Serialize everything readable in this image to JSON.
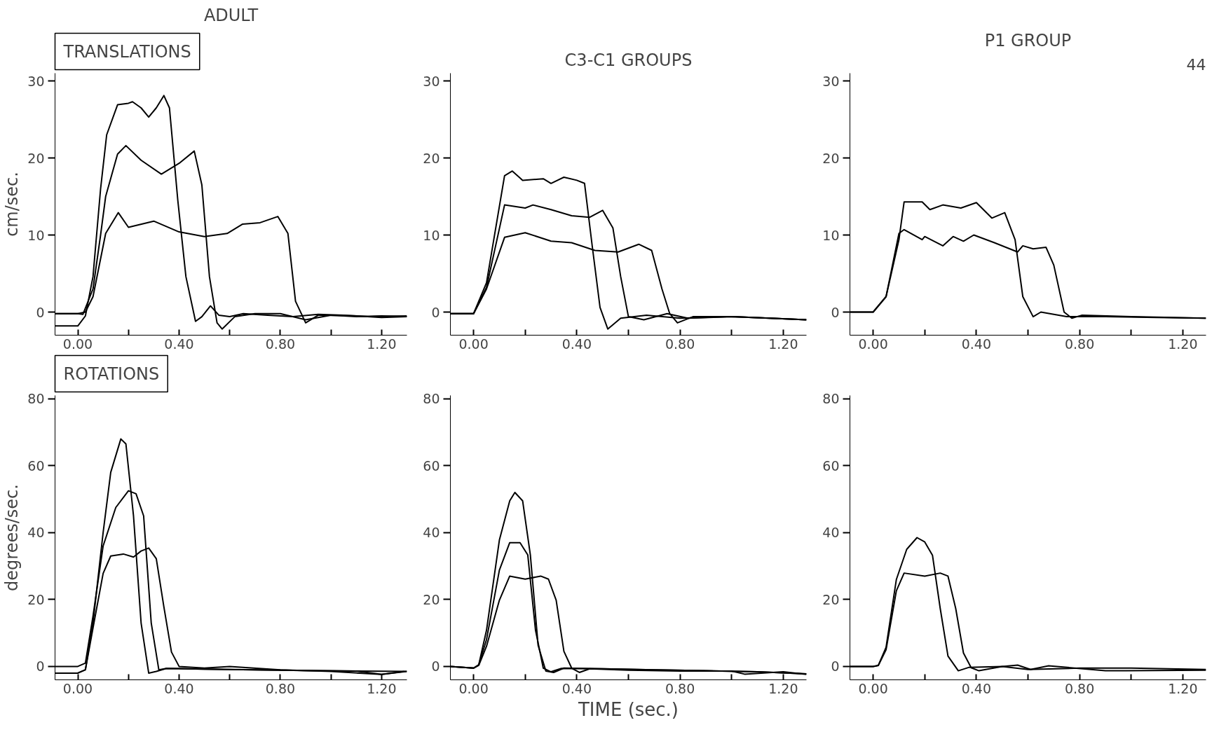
{
  "chart_data": [
    {
      "type": "line",
      "title": "ADULT",
      "ylabel": "cm/sec.",
      "annotations": [
        "TRANSLATIONS"
      ],
      "xlim": [
        -0.09,
        1.3
      ],
      "ylim": [
        -3,
        31
      ],
      "yticks": [
        0,
        10,
        20,
        30
      ],
      "xticks": [
        {
          "value": 0,
          "label": "0.00"
        },
        {
          "value": 0.2,
          "label": null
        },
        {
          "value": 0.4,
          "label": "0.40"
        },
        {
          "value": 0.6,
          "label": null
        },
        {
          "value": 0.8,
          "label": "0.80"
        },
        {
          "value": 1.0,
          "label": null
        },
        {
          "value": 1.2,
          "label": "1.20"
        }
      ],
      "series": [
        {
          "color": "#000000",
          "x": [
            -0.09,
            0.0,
            0.03,
            0.06,
            0.09,
            0.114,
            0.157,
            0.2,
            0.216,
            0.25,
            0.28,
            0.31,
            0.34,
            0.362,
            0.395,
            0.427,
            0.465,
            0.49,
            0.524,
            0.557,
            0.6,
            0.654,
            0.75,
            0.85,
            0.95,
            1.05,
            1.15,
            1.3
          ],
          "values": [
            -1.8,
            -1.8,
            -0.5,
            4.6,
            16,
            23,
            26.9,
            27.1,
            27.3,
            26.5,
            25.3,
            26.5,
            28.1,
            26.5,
            14.5,
            4.6,
            -1.2,
            -0.6,
            0.8,
            -0.4,
            -0.6,
            -0.2,
            -0.4,
            -0.6,
            -0.3,
            -0.4,
            -0.6,
            -0.5
          ]
        },
        {
          "color": "#000000",
          "x": [
            -0.09,
            0.0,
            0.02,
            0.06,
            0.09,
            0.11,
            0.157,
            0.19,
            0.25,
            0.33,
            0.4,
            0.46,
            0.49,
            0.52,
            0.55,
            0.57,
            0.62,
            0.7,
            0.8,
            0.9,
            1.0,
            1.1,
            1.2,
            1.3
          ],
          "values": [
            -0.2,
            -0.2,
            -0.3,
            3,
            10,
            15,
            20.5,
            21.6,
            19.7,
            17.9,
            19.3,
            20.9,
            16.5,
            4.6,
            -1.4,
            -2.2,
            -0.6,
            -0.2,
            -0.2,
            -1.0,
            -0.4,
            -0.5,
            -0.7,
            -0.6
          ]
        },
        {
          "color": "#000000",
          "x": [
            -0.09,
            0.0,
            0.03,
            0.06,
            0.11,
            0.16,
            0.2,
            0.3,
            0.4,
            0.5,
            0.59,
            0.65,
            0.72,
            0.79,
            0.83,
            0.86,
            0.9,
            0.95,
            1.0,
            1.1,
            1.2,
            1.3
          ],
          "values": [
            -0.2,
            -0.2,
            0,
            2,
            10.2,
            12.9,
            11,
            11.8,
            10.4,
            9.8,
            10.2,
            11.4,
            11.6,
            12.4,
            10.2,
            1.4,
            -1.4,
            -0.4,
            -0.4,
            -0.6,
            -0.5,
            -0.6
          ]
        }
      ]
    },
    {
      "type": "line",
      "title": "C3-C1 GROUPS",
      "xlim": [
        -0.09,
        1.29
      ],
      "ylim": [
        -3,
        31
      ],
      "yticks": [
        0,
        10,
        20,
        30
      ],
      "xticks": [
        {
          "value": 0,
          "label": "0.00"
        },
        {
          "value": 0.2,
          "label": null
        },
        {
          "value": 0.4,
          "label": "0.40"
        },
        {
          "value": 0.6,
          "label": null
        },
        {
          "value": 0.8,
          "label": "0.80"
        },
        {
          "value": 1.0,
          "label": null
        },
        {
          "value": 1.2,
          "label": "1.20"
        }
      ],
      "series": [
        {
          "color": "#000000",
          "x": [
            -0.09,
            0.0,
            0.05,
            0.12,
            0.15,
            0.19,
            0.27,
            0.3,
            0.35,
            0.4,
            0.43,
            0.46,
            0.49,
            0.52,
            0.57,
            0.67,
            0.8,
            1.0,
            1.15,
            1.29
          ],
          "values": [
            -0.2,
            -0.2,
            3.8,
            17.7,
            18.3,
            17.1,
            17.3,
            16.7,
            17.5,
            17.1,
            16.7,
            8.5,
            0.6,
            -2.2,
            -0.8,
            -0.4,
            -0.8,
            -0.6,
            -0.8,
            -1.0
          ]
        },
        {
          "color": "#000000",
          "x": [
            -0.09,
            0.0,
            0.05,
            0.12,
            0.2,
            0.23,
            0.3,
            0.38,
            0.45,
            0.5,
            0.54,
            0.57,
            0.6,
            0.66,
            0.75,
            0.83,
            1.0,
            1.29
          ],
          "values": [
            -0.2,
            -0.2,
            3.2,
            13.9,
            13.5,
            13.9,
            13.3,
            12.5,
            12.3,
            13.2,
            10.9,
            4.6,
            -0.6,
            -1.0,
            -0.2,
            -0.8,
            -0.6,
            -1.0
          ]
        },
        {
          "color": "#000000",
          "x": [
            -0.09,
            0.0,
            0.05,
            0.12,
            0.2,
            0.3,
            0.38,
            0.47,
            0.56,
            0.64,
            0.69,
            0.73,
            0.76,
            0.79,
            0.85,
            1.0,
            1.15,
            1.29
          ],
          "values": [
            -0.2,
            -0.2,
            3,
            9.7,
            10.3,
            9.2,
            9.0,
            8.0,
            7.8,
            8.8,
            8.0,
            3.0,
            -0.2,
            -1.4,
            -0.6,
            -0.6,
            -0.8,
            -1.0
          ]
        }
      ]
    },
    {
      "type": "line",
      "title": "P1 GROUP",
      "annotations": [
        "44"
      ],
      "xlim": [
        -0.09,
        1.29
      ],
      "ylim": [
        -3,
        31
      ],
      "yticks": [
        0,
        10,
        20,
        30
      ],
      "xticks": [
        {
          "value": 0,
          "label": "0.00"
        },
        {
          "value": 0.2,
          "label": null
        },
        {
          "value": 0.4,
          "label": "0.40"
        },
        {
          "value": 0.6,
          "label": null
        },
        {
          "value": 0.8,
          "label": "0.80"
        },
        {
          "value": 1.0,
          "label": null
        },
        {
          "value": 1.2,
          "label": "1.20"
        }
      ],
      "series": [
        {
          "color": "#000000",
          "x": [
            -0.09,
            0.0,
            0.05,
            0.1,
            0.12,
            0.19,
            0.22,
            0.27,
            0.34,
            0.4,
            0.46,
            0.51,
            0.55,
            0.58,
            0.62,
            0.65,
            0.75,
            0.9,
            1.1,
            1.29
          ],
          "values": [
            0,
            0,
            2.0,
            9.4,
            14.3,
            14.3,
            13.3,
            13.9,
            13.5,
            14.2,
            12.2,
            12.9,
            9.4,
            2.0,
            -0.6,
            0,
            -0.6,
            -0.6,
            -0.7,
            -0.8
          ]
        },
        {
          "color": "#000000",
          "x": [
            -0.09,
            0.0,
            0.05,
            0.1,
            0.12,
            0.19,
            0.2,
            0.27,
            0.31,
            0.35,
            0.39,
            0.47,
            0.56,
            0.58,
            0.62,
            0.67,
            0.7,
            0.74,
            0.77,
            0.81,
            1.0,
            1.29
          ],
          "values": [
            0,
            0,
            2.0,
            10.2,
            10.7,
            9.4,
            9.8,
            8.6,
            9.8,
            9.2,
            10.0,
            9.0,
            7.8,
            8.6,
            8.2,
            8.4,
            6.1,
            0,
            -0.8,
            -0.4,
            -0.6,
            -0.8
          ]
        }
      ]
    },
    {
      "type": "line",
      "ylabel": "degrees/sec.",
      "annotations": [
        "ROTATIONS"
      ],
      "xlim": [
        -0.09,
        1.3
      ],
      "ylim": [
        -4,
        81
      ],
      "yticks": [
        0,
        20,
        40,
        60,
        80
      ],
      "xticks": [
        {
          "value": 0,
          "label": "0.00"
        },
        {
          "value": 0.2,
          "label": null
        },
        {
          "value": 0.4,
          "label": "0.40"
        },
        {
          "value": 0.6,
          "label": null
        },
        {
          "value": 0.8,
          "label": "0.80"
        },
        {
          "value": 1.0,
          "label": null
        },
        {
          "value": 1.2,
          "label": "1.20"
        }
      ],
      "series": [
        {
          "color": "#000000",
          "x": [
            -0.09,
            0.0,
            0.03,
            0.06,
            0.1,
            0.13,
            0.17,
            0.19,
            0.22,
            0.25,
            0.28,
            0.31,
            0.35,
            0.5,
            0.7,
            0.9,
            1.1,
            1.2,
            1.3
          ],
          "values": [
            -2,
            -2,
            -1,
            13,
            40,
            58,
            68,
            66.5,
            45,
            13,
            -2,
            -1.5,
            -0.6,
            -0.8,
            -1,
            -1.2,
            -1.4,
            -2.4,
            -1.5
          ]
        },
        {
          "color": "#000000",
          "x": [
            -0.09,
            0.0,
            0.03,
            0.06,
            0.1,
            0.15,
            0.2,
            0.23,
            0.26,
            0.29,
            0.32,
            0.35,
            0.5,
            0.7,
            0.9,
            1.1,
            1.3
          ],
          "values": [
            0,
            0,
            1,
            15,
            36,
            47.5,
            52.5,
            51.6,
            45,
            13,
            -1,
            -0.6,
            -0.8,
            -1,
            -1.2,
            -1.4,
            -1.5
          ]
        },
        {
          "color": "#000000",
          "x": [
            -0.09,
            0.0,
            0.03,
            0.06,
            0.1,
            0.13,
            0.18,
            0.22,
            0.25,
            0.28,
            0.31,
            0.34,
            0.37,
            0.4,
            0.5,
            0.6,
            0.8,
            1.0,
            1.2,
            1.29
          ],
          "values": [
            -2,
            -2,
            -1,
            11.5,
            27.8,
            33,
            33.6,
            32.7,
            34.5,
            35.4,
            32.2,
            17.8,
            4.3,
            0,
            -0.5,
            0,
            -1,
            -1.5,
            -2.4,
            -1.5
          ]
        }
      ]
    },
    {
      "type": "line",
      "xlabel": "TIME (sec.)",
      "xlim": [
        -0.09,
        1.29
      ],
      "ylim": [
        -4,
        81
      ],
      "yticks": [
        0,
        20,
        40,
        60,
        80
      ],
      "xticks": [
        {
          "value": 0,
          "label": "0.00"
        },
        {
          "value": 0.2,
          "label": null
        },
        {
          "value": 0.4,
          "label": "0.40"
        },
        {
          "value": 0.6,
          "label": null
        },
        {
          "value": 0.8,
          "label": "0.80"
        },
        {
          "value": 1.0,
          "label": null
        },
        {
          "value": 1.2,
          "label": "1.20"
        }
      ],
      "series": [
        {
          "color": "#000000",
          "x": [
            -0.09,
            0.0,
            0.02,
            0.05,
            0.1,
            0.14,
            0.16,
            0.19,
            0.22,
            0.25,
            0.28,
            0.31,
            0.35,
            0.5,
            0.7,
            0.9,
            1.1,
            1.29
          ],
          "values": [
            0,
            -0.5,
            0.5,
            10.8,
            37.8,
            49.5,
            52,
            49.5,
            33.3,
            6.3,
            -1.4,
            -1.8,
            -0.5,
            -0.7,
            -1.0,
            -1.3,
            -1.6,
            -2.2
          ]
        },
        {
          "color": "#000000",
          "x": [
            -0.09,
            0.0,
            0.02,
            0.05,
            0.1,
            0.14,
            0.18,
            0.21,
            0.24,
            0.27,
            0.3,
            0.34,
            0.5,
            0.7,
            0.9,
            1.1,
            1.29
          ],
          "values": [
            0,
            -0.5,
            0.5,
            8,
            28.8,
            37,
            37,
            33.3,
            10.8,
            -0.5,
            -1.6,
            -0.6,
            -0.7,
            -1.0,
            -1.3,
            -1.6,
            -2.2
          ]
        },
        {
          "color": "#000000",
          "x": [
            -0.09,
            0.0,
            0.02,
            0.05,
            0.1,
            0.14,
            0.2,
            0.26,
            0.29,
            0.32,
            0.35,
            0.38,
            0.41,
            0.45,
            0.6,
            0.8,
            1.0,
            1.05,
            1.2,
            1.29
          ],
          "values": [
            0,
            -0.5,
            0.3,
            6,
            19.8,
            27,
            26.1,
            27,
            26.1,
            19.8,
            4.5,
            -0.5,
            -1.8,
            -0.7,
            -1.1,
            -1.4,
            -1.4,
            -2.3,
            -1.6,
            -2.4
          ]
        }
      ]
    },
    {
      "type": "line",
      "xlim": [
        -0.09,
        1.29
      ],
      "ylim": [
        -4,
        81
      ],
      "yticks": [
        0,
        20,
        40,
        60,
        80
      ],
      "xticks": [
        {
          "value": 0,
          "label": "0.00"
        },
        {
          "value": 0.2,
          "label": null
        },
        {
          "value": 0.4,
          "label": "0.40"
        },
        {
          "value": 0.6,
          "label": null
        },
        {
          "value": 0.8,
          "label": "0.80"
        },
        {
          "value": 1.0,
          "label": null
        },
        {
          "value": 1.2,
          "label": "1.20"
        }
      ],
      "series": [
        {
          "color": "#000000",
          "x": [
            -0.09,
            0.0,
            0.02,
            0.05,
            0.09,
            0.13,
            0.17,
            0.2,
            0.23,
            0.26,
            0.29,
            0.33,
            0.37,
            0.5,
            0.6,
            0.8,
            1.0,
            1.29
          ],
          "values": [
            0,
            0,
            0.3,
            5.7,
            26,
            35,
            38.5,
            37.2,
            33.2,
            17.3,
            3.1,
            -1.3,
            -0.3,
            0,
            -0.9,
            -0.5,
            -0.5,
            -0.9
          ]
        },
        {
          "color": "#000000",
          "x": [
            -0.09,
            0.0,
            0.02,
            0.05,
            0.09,
            0.12,
            0.2,
            0.26,
            0.29,
            0.32,
            0.35,
            0.38,
            0.41,
            0.5,
            0.56,
            0.61,
            0.68,
            0.9,
            0.98,
            1.29
          ],
          "values": [
            0,
            0,
            0.3,
            5,
            22.6,
            27.9,
            27,
            27.9,
            27,
            17.3,
            4,
            -0.4,
            -1.3,
            0,
            0.4,
            -0.9,
            0.2,
            -1.3,
            -1.3,
            -1.1
          ]
        }
      ]
    }
  ]
}
